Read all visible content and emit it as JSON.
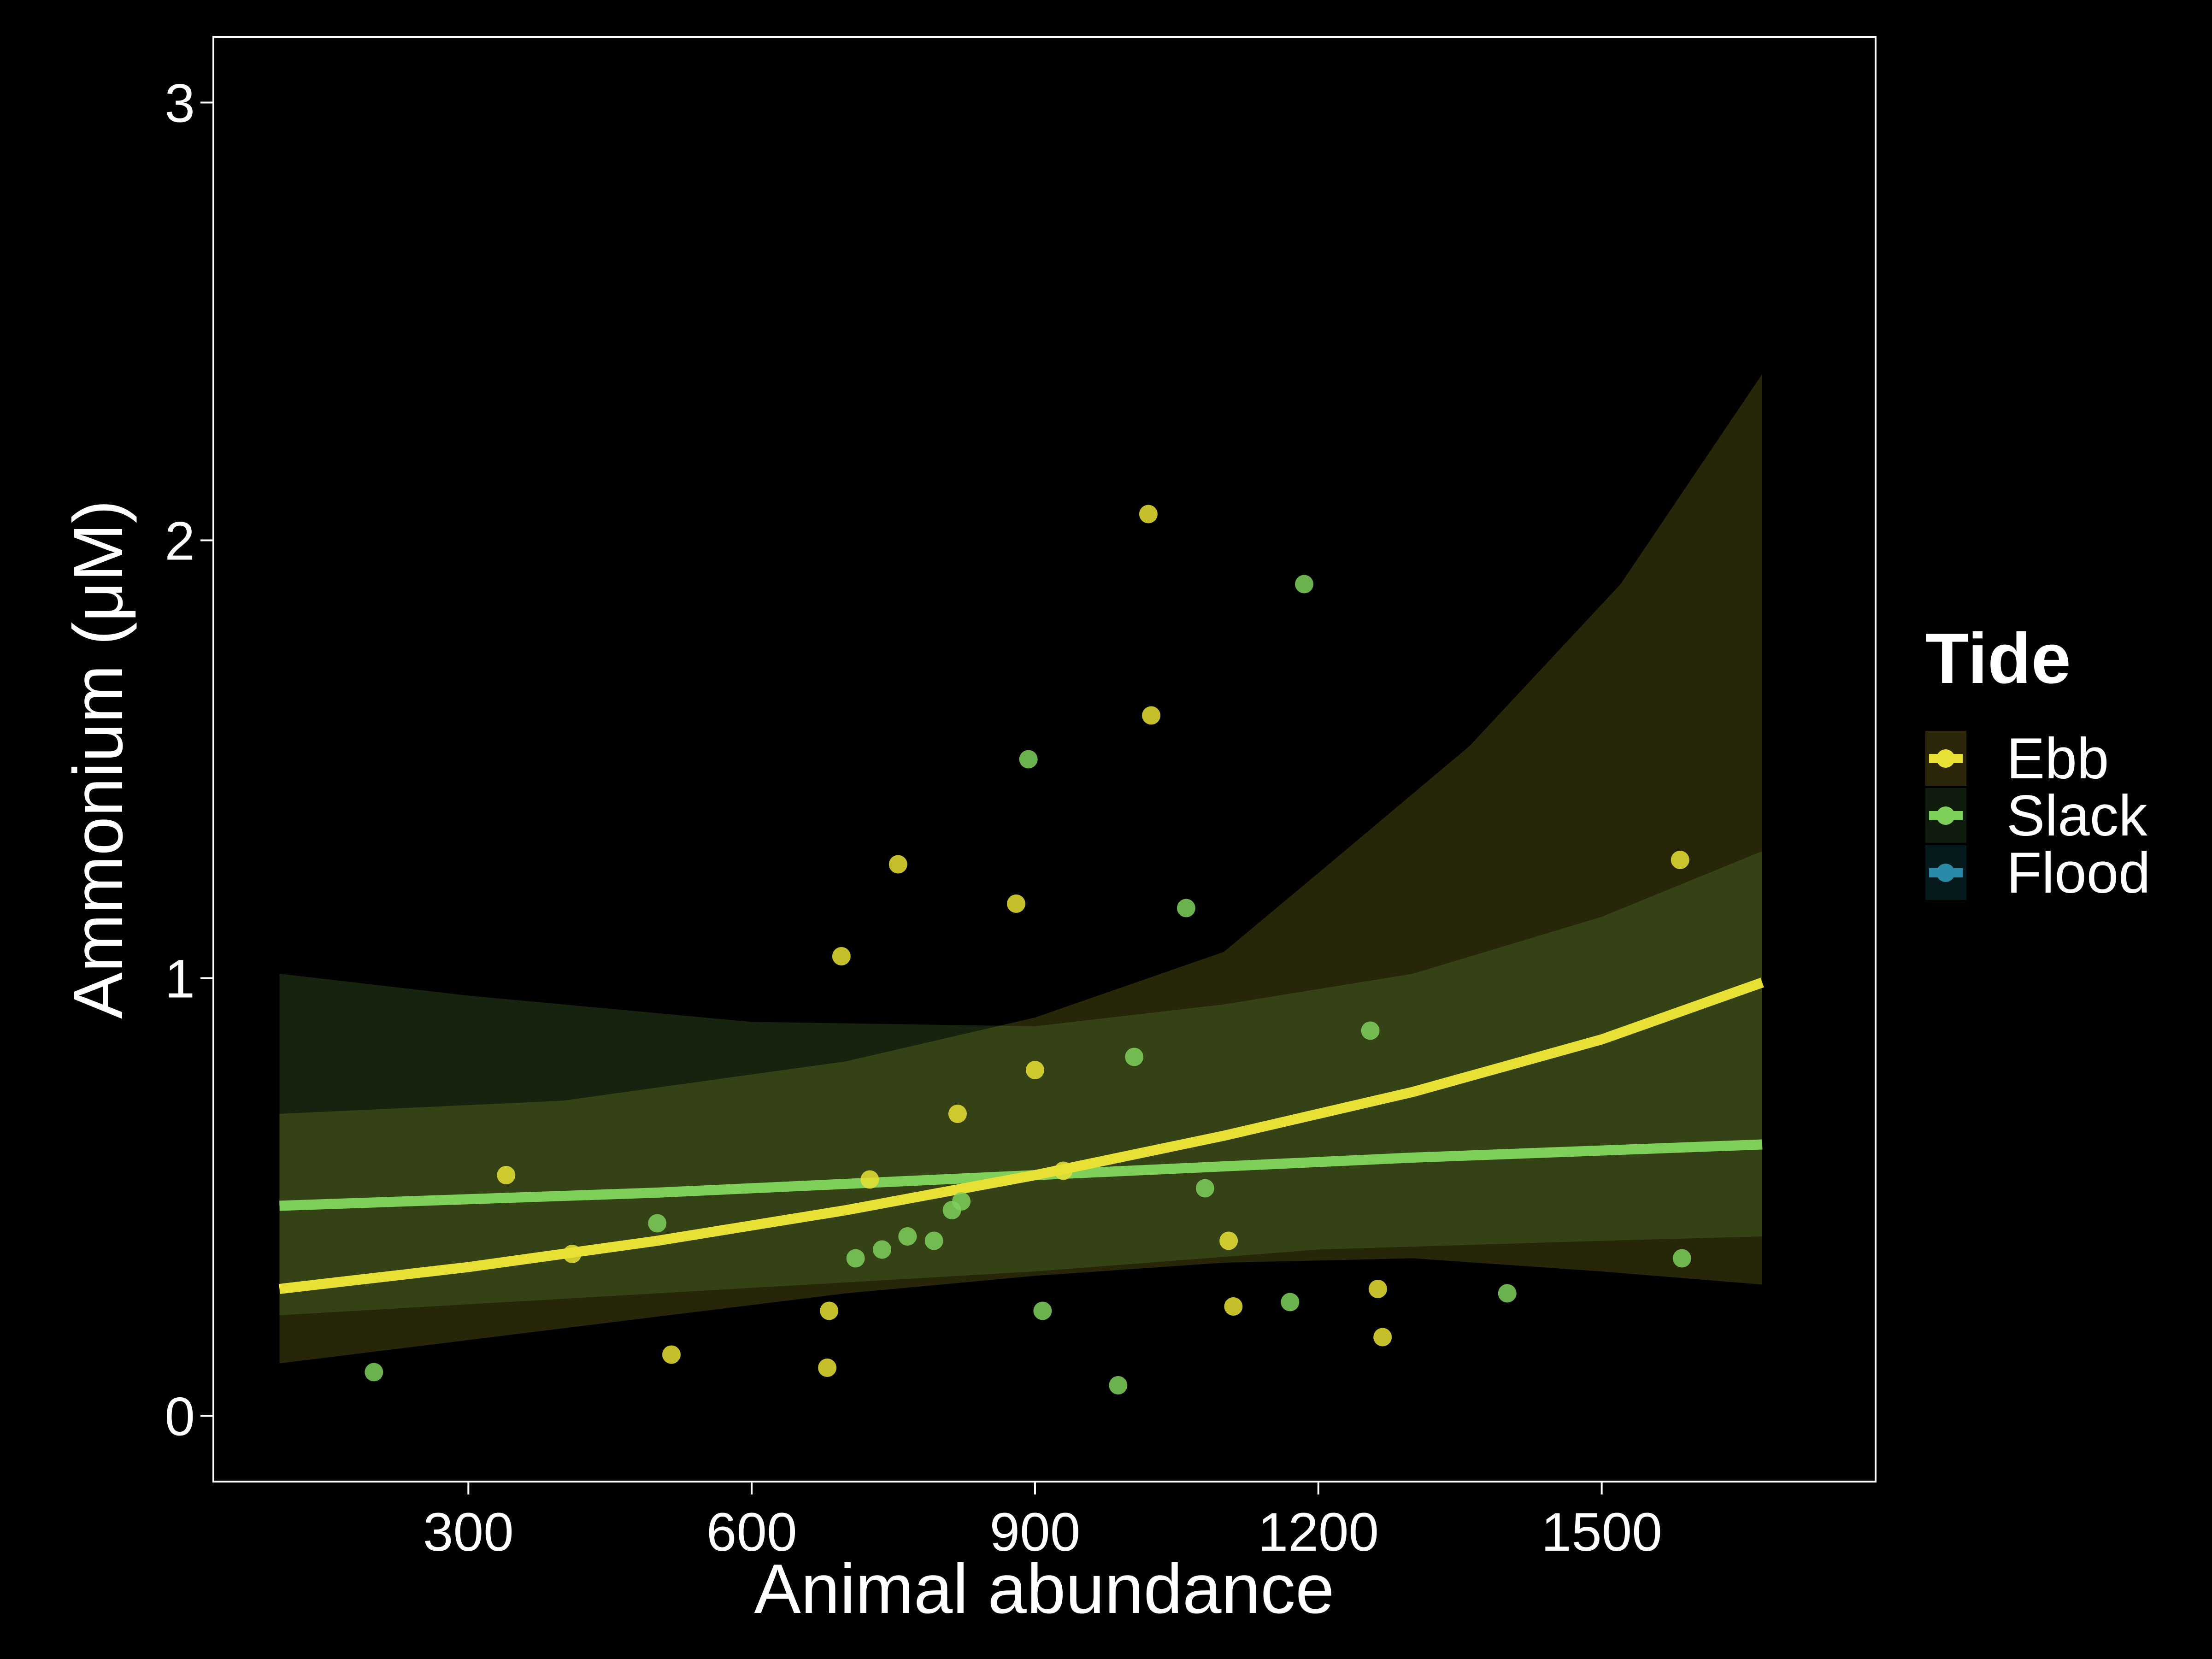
{
  "chart_data": {
    "type": "scatter",
    "xlabel": "Animal abundance",
    "ylabel": "Ammonium (μM)",
    "xlim": [
      30,
      1790
    ],
    "ylim": [
      -0.15,
      3.15
    ],
    "x_ticks": [
      300,
      600,
      900,
      1200,
      1500
    ],
    "x_tick_labels": [
      "300",
      "600",
      "900",
      "1200",
      "1500"
    ],
    "y_ticks": [
      0,
      1,
      2,
      3
    ],
    "y_tick_labels": [
      "0",
      "1",
      "2",
      "3"
    ],
    "background": "#000000",
    "axis_color": "#ffffff",
    "grid": false,
    "legend": {
      "title": "Tide",
      "placement": "right",
      "entries": [
        "Ebb",
        "Slack",
        "Flood"
      ]
    },
    "series": [
      {
        "name": "Ebb",
        "color": "#e8e034",
        "band_color": "#2c260a",
        "points": [
          [
            340,
            0.55
          ],
          [
            410,
            0.37
          ],
          [
            515,
            0.14
          ],
          [
            680,
            0.11
          ],
          [
            682,
            0.24
          ],
          [
            695,
            1.05
          ],
          [
            725,
            0.54
          ],
          [
            755,
            1.26
          ],
          [
            818,
            0.69
          ],
          [
            880,
            1.17
          ],
          [
            900,
            0.79
          ],
          [
            930,
            0.56
          ],
          [
            1020,
            2.06
          ],
          [
            1023,
            1.6
          ],
          [
            1105,
            0.4
          ],
          [
            1110,
            0.25
          ],
          [
            1263,
            0.29
          ],
          [
            1268,
            0.18
          ],
          [
            1583,
            1.27
          ]
        ],
        "fit": [
          [
            100,
            0.29
          ],
          [
            300,
            0.34
          ],
          [
            500,
            0.4
          ],
          [
            700,
            0.47
          ],
          [
            900,
            0.55
          ],
          [
            1100,
            0.64
          ],
          [
            1300,
            0.74
          ],
          [
            1500,
            0.86
          ],
          [
            1670,
            0.99
          ]
        ],
        "ci_lower": [
          [
            100,
            0.12
          ],
          [
            400,
            0.2
          ],
          [
            700,
            0.28
          ],
          [
            900,
            0.32
          ],
          [
            1100,
            0.35
          ],
          [
            1300,
            0.36
          ],
          [
            1500,
            0.33
          ],
          [
            1670,
            0.3
          ]
        ],
        "ci_upper": [
          [
            100,
            0.69
          ],
          [
            400,
            0.72
          ],
          [
            700,
            0.81
          ],
          [
            900,
            0.91
          ],
          [
            1100,
            1.06
          ],
          [
            1200,
            1.24
          ],
          [
            1360,
            1.53
          ],
          [
            1520,
            1.9
          ],
          [
            1670,
            2.38
          ]
        ]
      },
      {
        "name": "Slack",
        "color": "#7ed05a",
        "band_color": "#101c0e",
        "points": [
          [
            200,
            0.1
          ],
          [
            500,
            0.44
          ],
          [
            710,
            0.36
          ],
          [
            738,
            0.38
          ],
          [
            765,
            0.41
          ],
          [
            793,
            0.4
          ],
          [
            812,
            0.47
          ],
          [
            822,
            0.49
          ],
          [
            893,
            1.5
          ],
          [
            908,
            0.24
          ],
          [
            988,
            0.07
          ],
          [
            1005,
            0.82
          ],
          [
            1060,
            1.16
          ],
          [
            1080,
            0.52
          ],
          [
            1170,
            0.26
          ],
          [
            1185,
            1.9
          ],
          [
            1255,
            0.88
          ],
          [
            1400,
            0.28
          ],
          [
            1585,
            0.36
          ]
        ],
        "fit": [
          [
            100,
            0.48
          ],
          [
            500,
            0.51
          ],
          [
            900,
            0.55
          ],
          [
            1300,
            0.59
          ],
          [
            1670,
            0.62
          ]
        ],
        "ci_lower": [
          [
            100,
            0.23
          ],
          [
            500,
            0.28
          ],
          [
            900,
            0.33
          ],
          [
            1200,
            0.38
          ],
          [
            1500,
            0.4
          ],
          [
            1670,
            0.41
          ]
        ],
        "ci_upper": [
          [
            100,
            1.01
          ],
          [
            300,
            0.96
          ],
          [
            600,
            0.9
          ],
          [
            900,
            0.89
          ],
          [
            1100,
            0.94
          ],
          [
            1300,
            1.01
          ],
          [
            1500,
            1.14
          ],
          [
            1670,
            1.29
          ]
        ]
      },
      {
        "name": "Flood",
        "color": "#2a8aa8",
        "band_color": "#061a1e",
        "points": []
      }
    ]
  }
}
